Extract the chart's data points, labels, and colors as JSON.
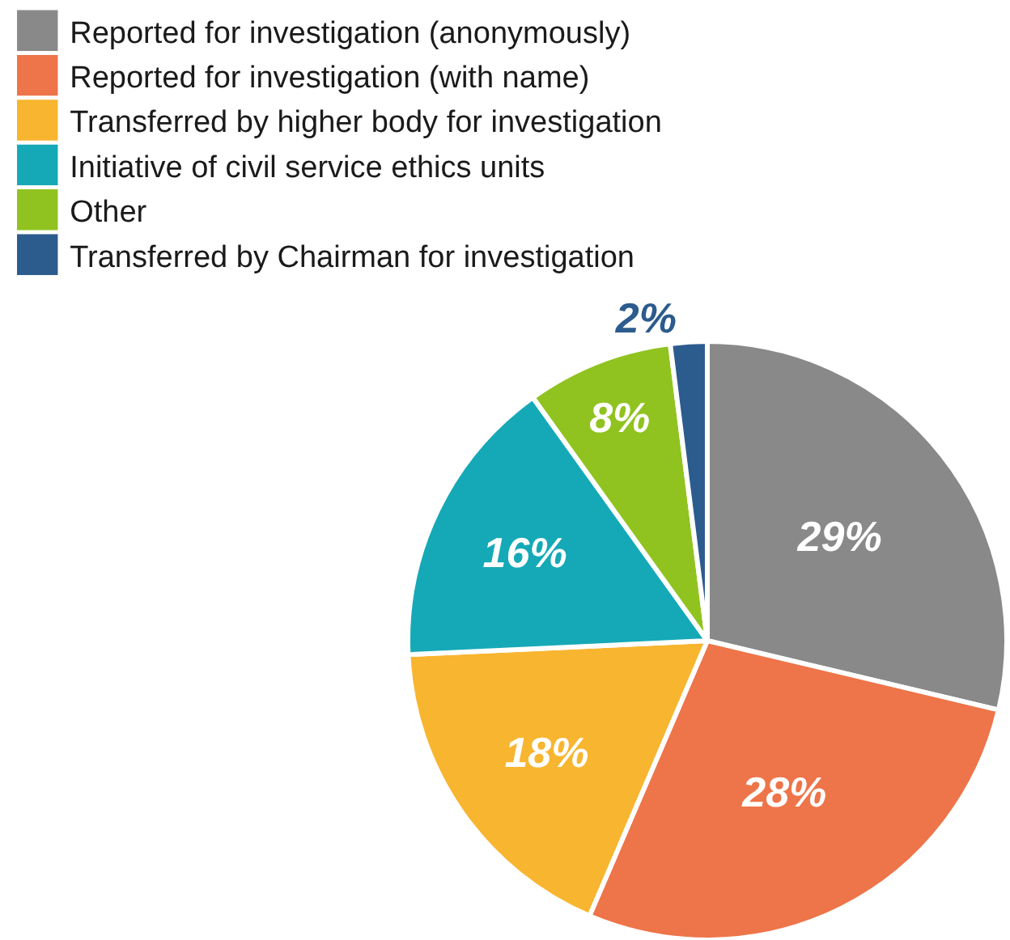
{
  "chart_data": {
    "type": "pie",
    "categories": [
      "Reported for investigation (anonymously)",
      "Reported for investigation (with name)",
      "Transferred by higher body for investigation",
      "Initiative of civil service ethics units",
      "Other",
      "Transferred by Chairman for investigation"
    ],
    "values": [
      29,
      28,
      18,
      16,
      8,
      2
    ],
    "value_labels": [
      "29%",
      "28%",
      "18%",
      "16%",
      "8%",
      "2%"
    ],
    "colors": [
      "#898989",
      "#ee7449",
      "#f8b52f",
      "#15a9b7",
      "#90c320",
      "#2c5b8e"
    ],
    "legend": "top left"
  }
}
